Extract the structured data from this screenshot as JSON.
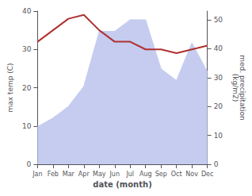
{
  "chart_data": {
    "type": "line",
    "xlabel": "date (month)",
    "ylabel": "max temp (C)",
    "y2label": "med. precipitation\n(kg/m2)",
    "categories": [
      "Jan",
      "Feb",
      "Mar",
      "Apr",
      "May",
      "Jun",
      "Jul",
      "Aug",
      "Sep",
      "Oct",
      "Nov",
      "Dec"
    ],
    "series": [
      {
        "type": "area",
        "color": "#c5ccf0",
        "axis": "y2",
        "values": [
          13,
          16,
          20,
          27,
          46,
          46,
          50,
          50,
          33,
          29,
          42,
          32
        ]
      },
      {
        "type": "line",
        "color": "#b03030",
        "values": [
          32,
          35,
          38,
          39,
          35,
          32,
          32,
          30,
          30,
          29,
          30,
          31
        ]
      }
    ],
    "ylim": [
      0,
      40
    ],
    "yticks": [
      0,
      10,
      20,
      30,
      40
    ],
    "y2lim": [
      0,
      53
    ],
    "y2ticks": [
      0,
      10,
      20,
      30,
      40,
      50
    ],
    "grid": false
  }
}
